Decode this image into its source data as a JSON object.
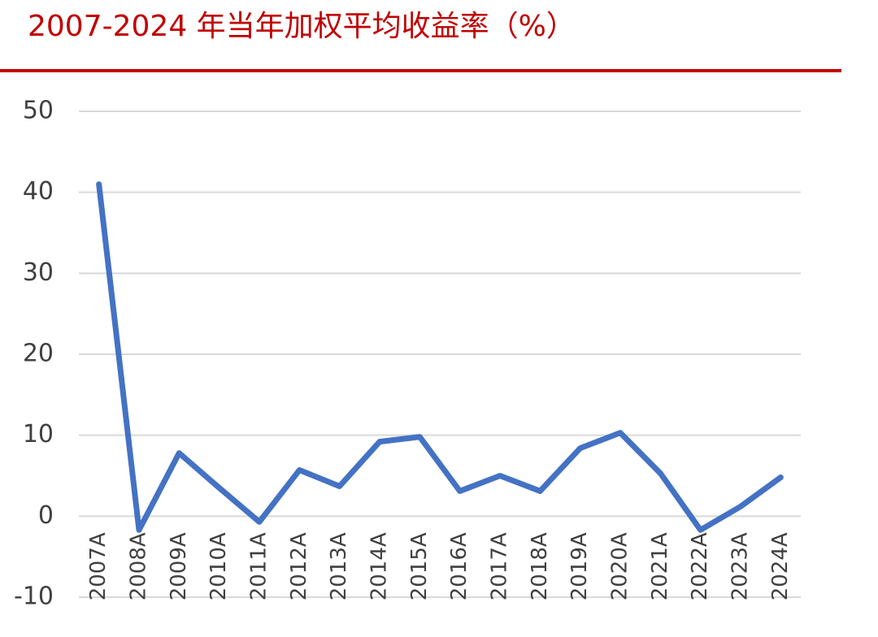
{
  "chart_data": {
    "type": "line",
    "title": "2007-2024 年当年加权平均收益率（%）",
    "categories": [
      "2007A",
      "2008A",
      "2009A",
      "2010A",
      "2011A",
      "2012A",
      "2013A",
      "2014A",
      "2015A",
      "2016A",
      "2017A",
      "2018A",
      "2019A",
      "2020A",
      "2021A",
      "2022A",
      "2023A",
      "2024A"
    ],
    "series": [
      {
        "name": "加权平均收益率",
        "color": "#4472c4",
        "values": [
          41,
          -1.7,
          7.8,
          3.5,
          -0.7,
          5.7,
          3.7,
          9.2,
          9.8,
          3.1,
          5.0,
          3.1,
          8.4,
          10.3,
          5.3,
          -1.7,
          1.2,
          4.8
        ]
      }
    ],
    "ylim": [
      -10,
      50
    ],
    "yticks": [
      -10,
      0,
      10,
      20,
      30,
      40,
      50
    ],
    "grid": true
  }
}
